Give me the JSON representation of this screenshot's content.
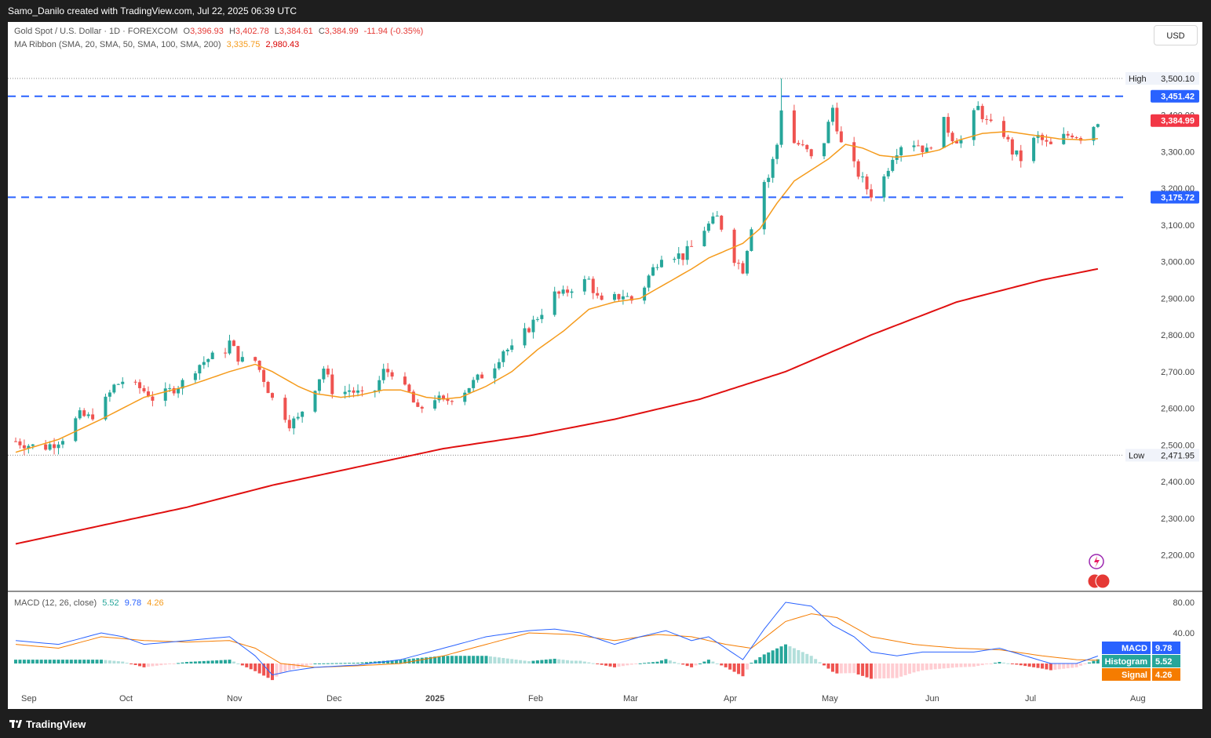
{
  "header": {
    "attribution": "Samo_Danilo created with TradingView.com, Jul 22, 2025 06:39 UTC"
  },
  "legend": {
    "symbol": "Gold Spot / U.S. Dollar · 1D · FOREXCOM",
    "open_label": "O",
    "open": "3,396.93",
    "high_label": "H",
    "high": "3,402.78",
    "low_label": "L",
    "low": "3,384.61",
    "close_label": "C",
    "close": "3,384.99",
    "change": "-11.94 (-0.35%)",
    "ma_label": "MA Ribbon (SMA, 20, SMA, 50, SMA, 100, SMA, 200)",
    "ma_fast_value": "3,335.75",
    "ma_slow_value": "2,980.43",
    "macd_label": "MACD (12, 26, close)",
    "macd_hist": "5.52",
    "macd_line": "9.78",
    "macd_signal": "4.26"
  },
  "currency_button": "USD",
  "footer": {
    "brand": "TradingView"
  },
  "price_tags": {
    "high_label": "High",
    "high_value": "3,500.10",
    "low_label": "Low",
    "low_value": "2,471.95",
    "resistance": "3,451.42",
    "current": "3,384.99",
    "support": "3,175.72",
    "macd_tag": "MACD",
    "macd_value": "9.78",
    "hist_tag": "Histogram",
    "hist_value": "5.52",
    "signal_tag": "Signal",
    "signal_value": "4.26"
  },
  "colors": {
    "up": "#26a69a",
    "down": "#ef5350",
    "sma20": "#f59b1c",
    "sma200": "#e01010",
    "level_line": "#2962ff",
    "macd_line": "#2962ff",
    "signal_line": "#f57c00",
    "current_tag": "#f23645",
    "level_tag": "#2962ff"
  },
  "chart_data": {
    "type": "candlestick",
    "symbol": "XAUUSD",
    "timeframe": "1D",
    "ylim": [
      2150,
      3520
    ],
    "yticks": [
      2200,
      2300,
      2400,
      2500,
      2600,
      2700,
      2800,
      2900,
      3000,
      3100,
      3200,
      3300,
      3400
    ],
    "ytick_labels": [
      "2,200.00",
      "2,300.00",
      "2,400.00",
      "2,500.00",
      "2,600.00",
      "2,700.00",
      "2,800.00",
      "2,900.00",
      "3,000.00",
      "3,100.00",
      "3,200.00",
      "3,300.00",
      "3,400.00"
    ],
    "x_labels": [
      "Sep",
      "Oct",
      "Nov",
      "Dec",
      "2025",
      "Feb",
      "Mar",
      "Apr",
      "May",
      "Jun",
      "Jul",
      "Aug"
    ],
    "high": 3500.1,
    "low": 2471.95,
    "horizontal_levels": [
      3451.42,
      3175.72
    ],
    "last_close": 3384.99,
    "close_path": [
      [
        0,
        2510
      ],
      [
        3,
        2500
      ],
      [
        6,
        2490
      ],
      [
        9,
        2505
      ],
      [
        11,
        2520
      ],
      [
        13,
        2555
      ],
      [
        15,
        2580
      ],
      [
        17,
        2575
      ],
      [
        19,
        2590
      ],
      [
        21,
        2620
      ],
      [
        23,
        2660
      ],
      [
        25,
        2675
      ],
      [
        27,
        2660
      ],
      [
        29,
        2655
      ],
      [
        31,
        2640
      ],
      [
        33,
        2615
      ],
      [
        35,
        2640
      ],
      [
        37,
        2655
      ],
      [
        39,
        2670
      ],
      [
        41,
        2700
      ],
      [
        43,
        2720
      ],
      [
        45,
        2735
      ],
      [
        47,
        2745
      ],
      [
        49,
        2760
      ],
      [
        50,
        2780
      ],
      [
        52,
        2740
      ],
      [
        54,
        2720
      ],
      [
        56,
        2730
      ],
      [
        58,
        2680
      ],
      [
        60,
        2625
      ],
      [
        62,
        2600
      ],
      [
        64,
        2560
      ],
      [
        66,
        2570
      ],
      [
        68,
        2620
      ],
      [
        70,
        2660
      ],
      [
        72,
        2710
      ],
      [
        74,
        2650
      ],
      [
        76,
        2640
      ],
      [
        78,
        2650
      ],
      [
        80,
        2640
      ],
      [
        82,
        2625
      ],
      [
        84,
        2650
      ],
      [
        86,
        2700
      ],
      [
        88,
        2700
      ],
      [
        90,
        2660
      ],
      [
        92,
        2640
      ],
      [
        94,
        2590
      ],
      [
        96,
        2615
      ],
      [
        98,
        2630
      ],
      [
        100,
        2615
      ],
      [
        102,
        2630
      ],
      [
        104,
        2640
      ],
      [
        106,
        2660
      ],
      [
        108,
        2680
      ],
      [
        110,
        2700
      ],
      [
        112,
        2720
      ],
      [
        114,
        2760
      ],
      [
        116,
        2760
      ],
      [
        118,
        2790
      ],
      [
        120,
        2820
      ],
      [
        122,
        2850
      ],
      [
        124,
        2880
      ],
      [
        126,
        2910
      ],
      [
        128,
        2910
      ],
      [
        130,
        2930
      ],
      [
        132,
        2940
      ],
      [
        134,
        2950
      ],
      [
        136,
        2900
      ],
      [
        138,
        2870
      ],
      [
        140,
        2900
      ],
      [
        142,
        2910
      ],
      [
        144,
        2895
      ],
      [
        146,
        2910
      ],
      [
        148,
        2960
      ],
      [
        150,
        3000
      ],
      [
        152,
        3040
      ],
      [
        154,
        3020
      ],
      [
        156,
        3015
      ],
      [
        158,
        3040
      ],
      [
        160,
        3080
      ],
      [
        162,
        3100
      ],
      [
        164,
        3120
      ],
      [
        166,
        3070
      ],
      [
        168,
        3010
      ],
      [
        170,
        2980
      ],
      [
        172,
        3100
      ],
      [
        174,
        3210
      ],
      [
        176,
        3230
      ],
      [
        178,
        3320
      ],
      [
        179,
        3420
      ],
      [
        181,
        3330
      ],
      [
        183,
        3320
      ],
      [
        185,
        3300
      ],
      [
        187,
        3260
      ],
      [
        189,
        3330
      ],
      [
        191,
        3420
      ],
      [
        193,
        3320
      ],
      [
        195,
        3280
      ],
      [
        197,
        3240
      ],
      [
        199,
        3200
      ],
      [
        201,
        3170
      ],
      [
        203,
        3230
      ],
      [
        205,
        3290
      ],
      [
        207,
        3320
      ],
      [
        209,
        3330
      ],
      [
        211,
        3320
      ],
      [
        213,
        3300
      ],
      [
        215,
        3350
      ],
      [
        217,
        3380
      ],
      [
        219,
        3340
      ],
      [
        221,
        3330
      ],
      [
        223,
        3380
      ],
      [
        225,
        3420
      ],
      [
        227,
        3380
      ],
      [
        229,
        3360
      ],
      [
        231,
        3350
      ],
      [
        233,
        3300
      ],
      [
        235,
        3280
      ],
      [
        237,
        3320
      ],
      [
        239,
        3340
      ],
      [
        241,
        3320
      ],
      [
        243,
        3310
      ],
      [
        245,
        3340
      ],
      [
        247,
        3350
      ],
      [
        249,
        3340
      ],
      [
        251,
        3360
      ],
      [
        253,
        3384.99
      ]
    ],
    "sma20": [
      [
        0,
        2480
      ],
      [
        10,
        2515
      ],
      [
        20,
        2570
      ],
      [
        30,
        2630
      ],
      [
        40,
        2660
      ],
      [
        50,
        2700
      ],
      [
        56,
        2720
      ],
      [
        60,
        2700
      ],
      [
        66,
        2660
      ],
      [
        70,
        2640
      ],
      [
        76,
        2630
      ],
      [
        80,
        2635
      ],
      [
        86,
        2650
      ],
      [
        90,
        2650
      ],
      [
        96,
        2630
      ],
      [
        100,
        2625
      ],
      [
        104,
        2630
      ],
      [
        110,
        2660
      ],
      [
        116,
        2700
      ],
      [
        122,
        2760
      ],
      [
        128,
        2810
      ],
      [
        134,
        2870
      ],
      [
        140,
        2890
      ],
      [
        146,
        2900
      ],
      [
        152,
        2940
      ],
      [
        158,
        2980
      ],
      [
        162,
        3010
      ],
      [
        166,
        3030
      ],
      [
        170,
        3050
      ],
      [
        174,
        3090
      ],
      [
        178,
        3160
      ],
      [
        182,
        3220
      ],
      [
        186,
        3250
      ],
      [
        190,
        3280
      ],
      [
        194,
        3320
      ],
      [
        198,
        3310
      ],
      [
        202,
        3290
      ],
      [
        206,
        3285
      ],
      [
        210,
        3290
      ],
      [
        216,
        3305
      ],
      [
        220,
        3330
      ],
      [
        226,
        3350
      ],
      [
        232,
        3355
      ],
      [
        238,
        3345
      ],
      [
        244,
        3335
      ],
      [
        250,
        3332
      ],
      [
        253,
        3335.75
      ]
    ],
    "sma200": [
      [
        0,
        2230
      ],
      [
        20,
        2280
      ],
      [
        40,
        2330
      ],
      [
        60,
        2390
      ],
      [
        80,
        2440
      ],
      [
        100,
        2490
      ],
      [
        120,
        2525
      ],
      [
        140,
        2570
      ],
      [
        160,
        2625
      ],
      [
        180,
        2700
      ],
      [
        200,
        2800
      ],
      [
        220,
        2890
      ],
      [
        240,
        2950
      ],
      [
        253,
        2980.43
      ]
    ],
    "macd": {
      "ylim": [
        -40,
        95
      ],
      "yticks": [
        40,
        80
      ],
      "ytick_labels": [
        "40.00",
        "80.00"
      ],
      "macd_line": [
        [
          0,
          30
        ],
        [
          10,
          25
        ],
        [
          20,
          40
        ],
        [
          25,
          35
        ],
        [
          30,
          25
        ],
        [
          40,
          30
        ],
        [
          50,
          35
        ],
        [
          56,
          10
        ],
        [
          60,
          -15
        ],
        [
          64,
          -10
        ],
        [
          70,
          -5
        ],
        [
          80,
          -2
        ],
        [
          90,
          5
        ],
        [
          100,
          20
        ],
        [
          110,
          35
        ],
        [
          120,
          43
        ],
        [
          126,
          45
        ],
        [
          132,
          40
        ],
        [
          140,
          25
        ],
        [
          146,
          35
        ],
        [
          152,
          43
        ],
        [
          158,
          30
        ],
        [
          162,
          35
        ],
        [
          166,
          20
        ],
        [
          170,
          5
        ],
        [
          175,
          45
        ],
        [
          180,
          80
        ],
        [
          186,
          75
        ],
        [
          191,
          50
        ],
        [
          196,
          35
        ],
        [
          200,
          15
        ],
        [
          206,
          10
        ],
        [
          212,
          15
        ],
        [
          218,
          15
        ],
        [
          224,
          15
        ],
        [
          230,
          20
        ],
        [
          236,
          10
        ],
        [
          242,
          0
        ],
        [
          248,
          0
        ],
        [
          253,
          9.78
        ]
      ],
      "signal_line": [
        [
          0,
          25
        ],
        [
          10,
          20
        ],
        [
          20,
          35
        ],
        [
          30,
          30
        ],
        [
          40,
          28
        ],
        [
          50,
          30
        ],
        [
          56,
          20
        ],
        [
          62,
          0
        ],
        [
          70,
          -5
        ],
        [
          80,
          -3
        ],
        [
          90,
          0
        ],
        [
          100,
          10
        ],
        [
          110,
          25
        ],
        [
          120,
          40
        ],
        [
          130,
          38
        ],
        [
          140,
          30
        ],
        [
          150,
          38
        ],
        [
          158,
          35
        ],
        [
          166,
          25
        ],
        [
          172,
          20
        ],
        [
          180,
          55
        ],
        [
          186,
          65
        ],
        [
          192,
          60
        ],
        [
          200,
          35
        ],
        [
          210,
          25
        ],
        [
          220,
          20
        ],
        [
          230,
          18
        ],
        [
          240,
          10
        ],
        [
          248,
          5
        ],
        [
          253,
          4.26
        ]
      ],
      "last_hist": 5.52
    }
  }
}
